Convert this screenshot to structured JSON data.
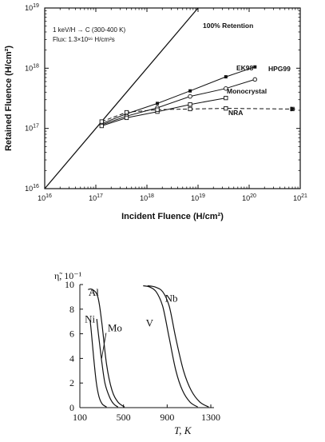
{
  "chart_data": [
    {
      "type": "line",
      "x_scale": "log",
      "y_scale": "log",
      "xlim": [
        1e+16,
        1e+21
      ],
      "ylim": [
        1e+16,
        1e+19
      ],
      "xlabel": "Incident Fluence (H/cm²)",
      "ylabel": "Retained Fluence (H/cm²)",
      "x_ticks": [
        {
          "value": 1e+16,
          "base": "10",
          "exp": "16"
        },
        {
          "value": 1e+17,
          "base": "10",
          "exp": "17"
        },
        {
          "value": 1e+18,
          "base": "10",
          "exp": "18"
        },
        {
          "value": 1e+19,
          "base": "10",
          "exp": "19"
        },
        {
          "value": 1e+20,
          "base": "10",
          "exp": "20"
        },
        {
          "value": 1e+21,
          "base": "10",
          "exp": "21"
        }
      ],
      "y_ticks": [
        {
          "value": 1e+16,
          "base": "10",
          "exp": "16"
        },
        {
          "value": 1e+17,
          "base": "10",
          "exp": "17"
        },
        {
          "value": 1e+18,
          "base": "10",
          "exp": "18"
        },
        {
          "value": 1e+19,
          "base": "10",
          "exp": "19"
        }
      ],
      "annotations": [
        "1 keV/H → C (300-400 K)",
        "Flux: 1.3×10¹⁶ H/cm²s"
      ],
      "series": [
        {
          "name": "100% Retention",
          "style": "solid",
          "marker": "none",
          "x": [
            1e+16,
            1e+19
          ],
          "y": [
            1e+16,
            1e+19
          ]
        },
        {
          "name": "EK98",
          "style": "solid",
          "marker": "filled-square",
          "x": [
            1.3e+17,
            4e+17,
            1.6e+18,
            7e+18,
            3.5e+19,
            1.3e+20
          ],
          "y": [
            1.2e+17,
            1.75e+17,
            2.6e+17,
            4.2e+17,
            7.2e+17,
            1.05e+18
          ]
        },
        {
          "name": "HPG99",
          "style": "solid",
          "marker": "open-circle",
          "x": [
            1.3e+17,
            4e+17,
            1.6e+18,
            7e+18,
            3.5e+19,
            1.3e+20
          ],
          "y": [
            1.15e+17,
            1.6e+17,
            2.2e+17,
            3.4e+17,
            4.6e+17,
            6.5e+17
          ]
        },
        {
          "name": "Monocrystal",
          "style": "solid",
          "marker": "open-square",
          "x": [
            1.3e+17,
            4e+17,
            1.6e+18,
            7e+18,
            3.5e+19
          ],
          "y": [
            1.1e+17,
            1.5e+17,
            1.9e+17,
            2.5e+17,
            3.2e+17
          ]
        },
        {
          "name": "NRA",
          "style": "dashed",
          "marker": "open-square",
          "x": [
            1.3e+17,
            4e+17,
            1.6e+18,
            7e+18,
            3.5e+19,
            7e+20
          ],
          "y": [
            1.3e+17,
            1.85e+17,
            2.05e+17,
            2.1e+17,
            2.15e+17,
            2.1e+17
          ]
        }
      ]
    },
    {
      "type": "line",
      "xlim": [
        100,
        1300
      ],
      "ylim": [
        0,
        10
      ],
      "xlabel": "T, K",
      "ylabel": "η̃, 10⁻¹",
      "x_ticks": [
        "100",
        "500",
        "900",
        "1300"
      ],
      "y_ticks": [
        "0",
        "2",
        "4",
        "6",
        "8",
        "10"
      ],
      "x_tick_values": [
        100,
        500,
        900,
        1300
      ],
      "y_tick_values": [
        0,
        2,
        4,
        6,
        8,
        10
      ],
      "series": [
        {
          "name": "Ni",
          "x": [
            195,
            205,
            225,
            250,
            275,
            305,
            345
          ],
          "y": [
            7.0,
            6.2,
            4.2,
            2.1,
            0.9,
            0.3,
            0.05
          ]
        },
        {
          "name": "Mo",
          "x": [
            255,
            270,
            300,
            330,
            370,
            410,
            450
          ],
          "y": [
            7.2,
            6.0,
            3.8,
            2.0,
            0.9,
            0.3,
            0.05
          ]
        },
        {
          "name": "Al",
          "x": [
            175,
            215,
            265,
            300,
            345,
            395,
            450,
            510
          ],
          "y": [
            9.6,
            9.6,
            9.0,
            7.0,
            3.5,
            1.4,
            0.45,
            0.05
          ]
        },
        {
          "name": "V",
          "x": [
            680,
            740,
            800,
            860,
            920,
            980,
            1040,
            1110,
            1180
          ],
          "y": [
            9.9,
            9.8,
            9.4,
            8.2,
            5.6,
            3.0,
            1.4,
            0.45,
            0.05
          ]
        },
        {
          "name": "Nb",
          "x": [
            720,
            790,
            860,
            920,
            980,
            1050,
            1120,
            1200,
            1280
          ],
          "y": [
            9.9,
            9.8,
            9.4,
            8.2,
            5.6,
            3.0,
            1.4,
            0.45,
            0.05
          ]
        }
      ],
      "series_label_positions": [
        {
          "name": "Ni",
          "x": 145,
          "y": 6.9
        },
        {
          "name": "Mo",
          "x": 355,
          "y": 6.2
        },
        {
          "name": "Al",
          "x": 180,
          "y": 9.1
        },
        {
          "name": "V",
          "x": 705,
          "y": 6.6
        },
        {
          "name": "Nb",
          "x": 880,
          "y": 8.6
        }
      ]
    }
  ]
}
